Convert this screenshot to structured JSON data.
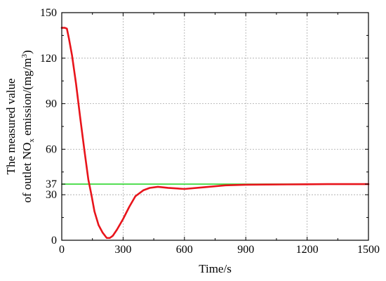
{
  "chart_data": {
    "type": "line",
    "xlabel": "Time/s",
    "ylabel_line1": "The measured value",
    "ylabel_line2_prefix": "of outlet NO",
    "ylabel_line2_sub": "x",
    "ylabel_line2_mid": " emission/(mg/m",
    "ylabel_line2_sup": "3",
    "ylabel_line2_suffix": ")",
    "xlim": [
      0,
      1500
    ],
    "ylim": [
      0,
      150
    ],
    "x_ticks": [
      0,
      300,
      600,
      900,
      1200,
      1500
    ],
    "y_ticks": [
      0,
      30,
      37,
      60,
      90,
      120,
      150
    ],
    "grid": true,
    "series": [
      {
        "color": "#e8141b",
        "x": [
          0,
          15,
          25,
          35,
          50,
          70,
          90,
          110,
          130,
          145,
          160,
          180,
          200,
          220,
          235,
          250,
          270,
          300,
          330,
          360,
          400,
          430,
          470,
          520,
          600,
          700,
          800,
          900,
          1000,
          1100,
          1200,
          1300,
          1400,
          1500
        ],
        "y": [
          140,
          140,
          139.5,
          133,
          122,
          103,
          81,
          60,
          40,
          30,
          19,
          10,
          5,
          1.5,
          1.5,
          3,
          7,
          14,
          22,
          29,
          33,
          34.5,
          35.2,
          34.5,
          33.8,
          35,
          36.2,
          36.6,
          36.7,
          36.8,
          36.9,
          37,
          37,
          37
        ]
      },
      {
        "color": "#2dd62d",
        "x": [
          0,
          1500
        ],
        "y": [
          37,
          37
        ]
      }
    ]
  }
}
